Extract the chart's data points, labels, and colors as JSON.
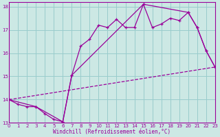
{
  "xlabel": "Windchill (Refroidissement éolien,°C)",
  "bg_color": "#cce8e4",
  "grid_color": "#99cccc",
  "line_color": "#990099",
  "xlim": [
    0,
    23
  ],
  "ylim": [
    13,
    18.2
  ],
  "yticks": [
    13,
    14,
    15,
    16,
    17,
    18
  ],
  "xticks": [
    0,
    1,
    2,
    3,
    4,
    5,
    6,
    7,
    8,
    9,
    10,
    11,
    12,
    13,
    14,
    15,
    16,
    17,
    18,
    19,
    20,
    21,
    22,
    23
  ],
  "line1_x": [
    0,
    1,
    2,
    3,
    4,
    5,
    6,
    7,
    8,
    9,
    10,
    11,
    12,
    13,
    14,
    15,
    16,
    17,
    18,
    19,
    20,
    21,
    22,
    23
  ],
  "line1_y": [
    14.0,
    13.8,
    13.7,
    13.7,
    13.4,
    13.15,
    13.05,
    15.05,
    16.3,
    16.6,
    17.2,
    17.1,
    17.45,
    17.1,
    17.1,
    18.1,
    17.1,
    17.25,
    17.5,
    17.4,
    17.75,
    17.1,
    16.1,
    15.4
  ],
  "line2_x": [
    0,
    3,
    6,
    7,
    15,
    20,
    21,
    22,
    23
  ],
  "line2_y": [
    14.0,
    13.7,
    13.05,
    15.05,
    18.1,
    17.75,
    17.1,
    16.1,
    15.4
  ],
  "line3_x": [
    0,
    23
  ],
  "line3_y": [
    14.0,
    15.4
  ]
}
